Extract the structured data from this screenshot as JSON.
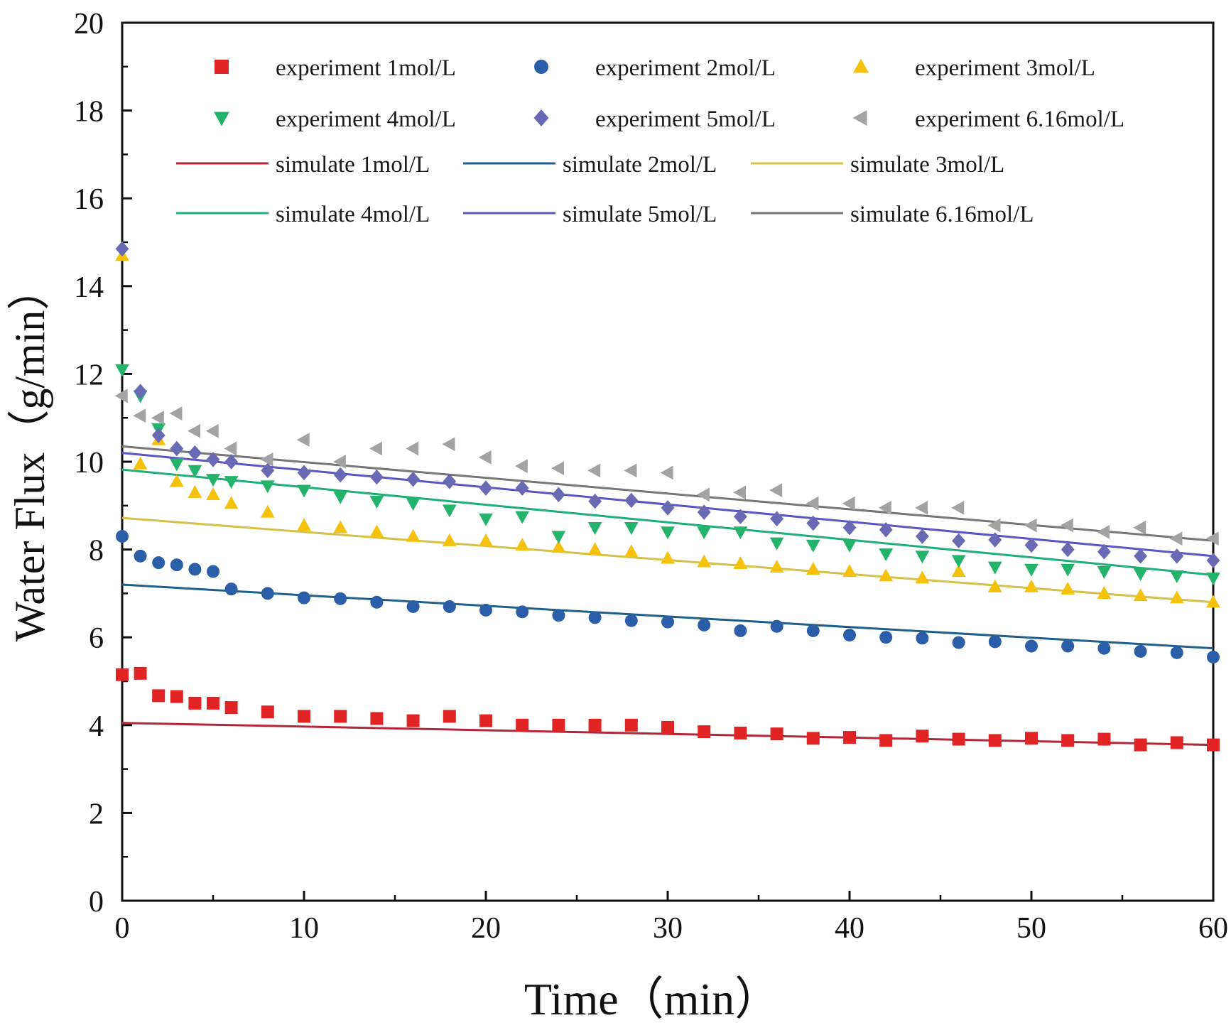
{
  "chart_data": {
    "type": "scatter",
    "xlabel": "Time（min）",
    "ylabel": "Water Flux（g/min）",
    "xlim": [
      0,
      60
    ],
    "ylim": [
      0,
      20
    ],
    "xticks": [
      0,
      10,
      20,
      30,
      40,
      50,
      60
    ],
    "yticks": [
      0,
      2,
      4,
      6,
      8,
      10,
      12,
      14,
      16,
      18,
      20
    ],
    "grid": false,
    "legend_position": "top",
    "x": [
      0,
      1,
      2,
      3,
      4,
      5,
      6,
      8,
      10,
      12,
      14,
      16,
      18,
      20,
      22,
      24,
      26,
      28,
      30,
      32,
      34,
      36,
      38,
      40,
      42,
      44,
      46,
      48,
      50,
      52,
      54,
      56,
      58,
      60
    ],
    "series": [
      {
        "name": "experiment 1mol/L",
        "kind": "marker",
        "marker": "square",
        "color": "#e02424",
        "values": [
          5.15,
          5.18,
          4.67,
          4.65,
          4.5,
          4.5,
          4.4,
          4.3,
          4.2,
          4.2,
          4.15,
          4.1,
          4.2,
          4.1,
          4.0,
          4.0,
          4.0,
          4.0,
          3.95,
          3.85,
          3.82,
          3.8,
          3.7,
          3.72,
          3.65,
          3.75,
          3.68,
          3.65,
          3.7,
          3.65,
          3.68,
          3.55,
          3.6,
          3.55
        ]
      },
      {
        "name": "experiment 2mol/L",
        "kind": "marker",
        "marker": "circle",
        "color": "#2a5ea8",
        "values": [
          8.3,
          7.85,
          7.7,
          7.65,
          7.55,
          7.5,
          7.1,
          7.0,
          6.9,
          6.88,
          6.8,
          6.7,
          6.7,
          6.62,
          6.58,
          6.5,
          6.45,
          6.38,
          6.35,
          6.28,
          6.15,
          6.25,
          6.15,
          6.05,
          6.0,
          5.98,
          5.88,
          5.9,
          5.8,
          5.8,
          5.75,
          5.68,
          5.65,
          5.55
        ]
      },
      {
        "name": "experiment 3mol/L",
        "kind": "marker",
        "marker": "triangle-up",
        "color": "#f4c20d",
        "values": [
          14.7,
          9.95,
          10.5,
          9.55,
          9.3,
          9.25,
          9.05,
          8.85,
          8.55,
          8.5,
          8.4,
          8.3,
          8.2,
          8.2,
          8.1,
          8.05,
          8.0,
          7.95,
          7.8,
          7.72,
          7.68,
          7.6,
          7.55,
          7.5,
          7.4,
          7.35,
          7.5,
          7.15,
          7.15,
          7.1,
          7.0,
          6.95,
          6.9,
          6.8
        ]
      },
      {
        "name": "experiment 4mol/L",
        "kind": "marker",
        "marker": "triangle-down",
        "color": "#24b36b",
        "values": [
          12.1,
          11.5,
          10.75,
          9.95,
          9.8,
          9.6,
          9.55,
          9.45,
          9.35,
          9.2,
          9.1,
          9.05,
          8.9,
          8.7,
          8.75,
          8.3,
          8.5,
          8.5,
          8.4,
          8.4,
          8.4,
          8.15,
          8.1,
          8.1,
          7.9,
          7.85,
          7.75,
          7.6,
          7.55,
          7.55,
          7.5,
          7.45,
          7.4,
          7.35
        ]
      },
      {
        "name": "experiment 5mol/L",
        "kind": "marker",
        "marker": "diamond",
        "color": "#6a6ab4",
        "values": [
          14.85,
          11.6,
          10.6,
          10.3,
          10.2,
          10.05,
          10.0,
          9.8,
          9.75,
          9.7,
          9.65,
          9.6,
          9.55,
          9.4,
          9.4,
          9.25,
          9.1,
          9.12,
          8.95,
          8.85,
          8.75,
          8.7,
          8.6,
          8.5,
          8.45,
          8.3,
          8.2,
          8.22,
          8.1,
          8.0,
          7.95,
          7.85,
          7.85,
          7.75
        ]
      },
      {
        "name": "experiment 6.16mol/L",
        "kind": "marker",
        "marker": "triangle-left",
        "color": "#a3a3a3",
        "values": [
          11.5,
          11.05,
          11.0,
          11.1,
          10.7,
          10.7,
          10.3,
          10.05,
          10.5,
          10.0,
          10.3,
          10.3,
          10.4,
          10.1,
          9.9,
          9.85,
          9.8,
          9.8,
          9.75,
          9.25,
          9.3,
          9.35,
          9.05,
          9.05,
          8.95,
          8.95,
          8.95,
          8.55,
          8.55,
          8.55,
          8.4,
          8.5,
          8.25,
          8.25
        ]
      },
      {
        "name": "simulate 1mol/L",
        "kind": "line",
        "color": "#b3263a",
        "x_line": [
          0,
          60
        ],
        "values_line": [
          4.05,
          3.55
        ]
      },
      {
        "name": "simulate 2mol/L",
        "kind": "line",
        "color": "#1f5f8a",
        "x_line": [
          0,
          60
        ],
        "values_line": [
          7.2,
          5.75
        ]
      },
      {
        "name": "simulate 3mol/L",
        "kind": "line",
        "color": "#d4c04a",
        "x_line": [
          0,
          60
        ],
        "values_line": [
          8.72,
          6.8
        ]
      },
      {
        "name": "simulate 4mol/L",
        "kind": "line",
        "color": "#1fae7a",
        "x_line": [
          0,
          60
        ],
        "values_line": [
          9.82,
          7.42
        ]
      },
      {
        "name": "simulate 5mol/L",
        "kind": "line",
        "color": "#5b54c4",
        "x_line": [
          0,
          60
        ],
        "values_line": [
          10.2,
          7.85
        ]
      },
      {
        "name": "simulate 6.16mol/L",
        "kind": "line",
        "color": "#777777",
        "x_line": [
          0,
          60
        ],
        "values_line": [
          10.35,
          8.2
        ]
      }
    ]
  }
}
